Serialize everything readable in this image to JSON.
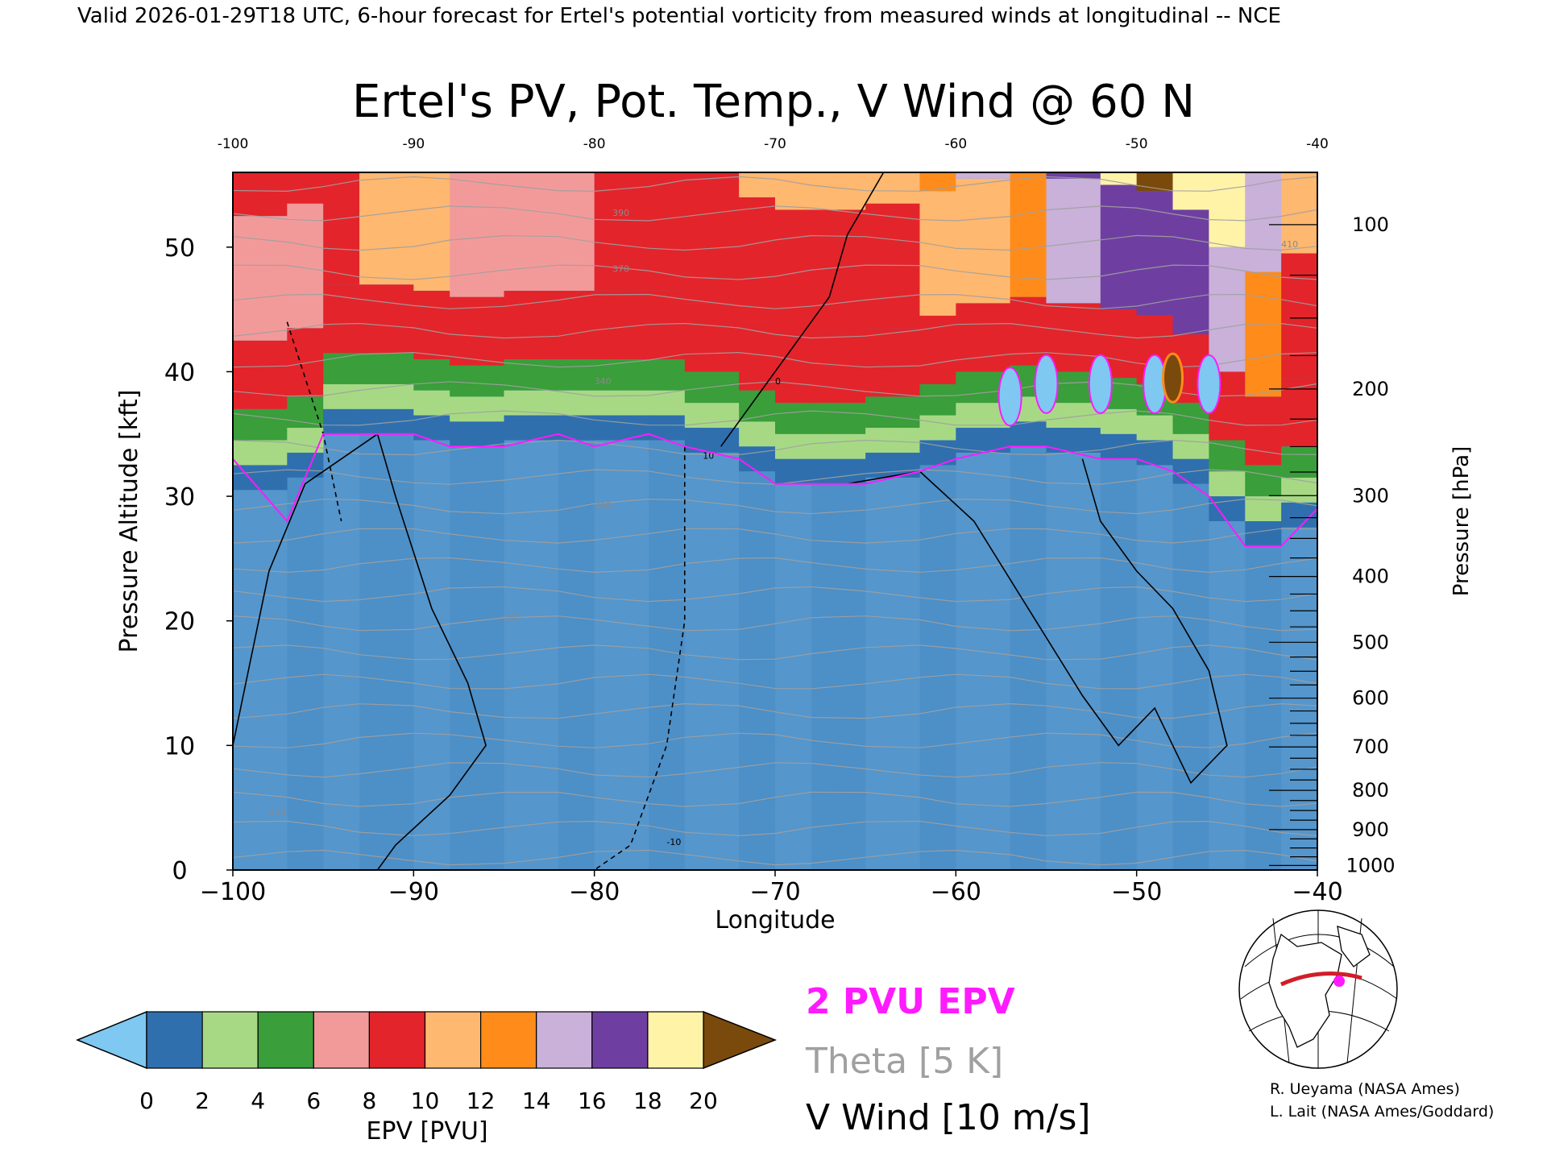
{
  "header": {
    "caption": "Valid 2026-01-29T18 UTC, 6-hour forecast for Ertel's potential vorticity from measured winds at longitudinal -- NCE"
  },
  "chart_data": {
    "type": "heatmap",
    "title": "Ertel's PV, Pot. Temp., V Wind @ 60 N",
    "xlabel": "Longitude",
    "ylabel_left": "Pressure Altitude [kft]",
    "ylabel_right": "Pressure [hPa]",
    "xlim": [
      -100,
      -40
    ],
    "ylim": [
      0,
      56
    ],
    "x_ticks": [
      -100,
      -90,
      -80,
      -70,
      -60,
      -50,
      -40
    ],
    "x_tick_labels": [
      "−100",
      "−90",
      "−80",
      "−70",
      "−60",
      "−50",
      "−40"
    ],
    "top_x_tick_labels": [
      "-100",
      "-90",
      "-80",
      "-70",
      "-60",
      "-50",
      "-40"
    ],
    "y_ticks": [
      0,
      10,
      20,
      30,
      40,
      50
    ],
    "y_tick_labels": [
      "0",
      "10",
      "20",
      "30",
      "40",
      "50"
    ],
    "pressure_ticks": [
      {
        "hpa": 1000,
        "label": "1000"
      },
      {
        "hpa": 900,
        "label": "900"
      },
      {
        "hpa": 800,
        "label": "800"
      },
      {
        "hpa": 700,
        "label": "700"
      },
      {
        "hpa": 600,
        "label": "600"
      },
      {
        "hpa": 500,
        "label": "500"
      },
      {
        "hpa": 400,
        "label": "400"
      },
      {
        "hpa": 300,
        "label": "300"
      },
      {
        "hpa": 200,
        "label": "200"
      },
      {
        "hpa": 100,
        "label": "100"
      }
    ],
    "epv_field": {
      "x": [
        -100,
        -97,
        -95,
        -93,
        -90,
        -88,
        -85,
        -82,
        -80,
        -77,
        -75,
        -72,
        -70,
        -68,
        -65,
        -62,
        -60,
        -57,
        -55,
        -52,
        -50,
        -48,
        -46,
        -44,
        -42,
        -40
      ],
      "tropopause_kft": [
        33,
        28,
        35,
        35,
        35,
        34,
        34,
        35,
        34,
        35,
        34,
        33,
        31,
        31,
        31,
        32,
        33,
        34,
        34,
        33,
        33,
        32,
        30,
        26,
        26,
        29
      ],
      "upper_epv_pvu": [
        9,
        8,
        10,
        12,
        15,
        9,
        9,
        9,
        9,
        10,
        9,
        10,
        10,
        11,
        11,
        12,
        14,
        14,
        16,
        18,
        20,
        20,
        19,
        18,
        12,
        10
      ]
    },
    "theta_levels_k": [
      270,
      290,
      300,
      340,
      370,
      390,
      410
    ],
    "wind_contour_labels": [
      "0",
      "10",
      "-10"
    ],
    "epv_contour_pvu": 2,
    "colorbar": {
      "label": "EPV [PVU]",
      "tick_labels": [
        "0",
        "2",
        "4",
        "6",
        "8",
        "10",
        "12",
        "14",
        "16",
        "18",
        "20"
      ],
      "colors": [
        "#2f6fae",
        "#a7d985",
        "#3a9e3a",
        "#f29a9a",
        "#e3242b",
        "#ffb870",
        "#ff8c1a",
        "#c9b1d9",
        "#6e3fa0",
        "#fff3a8"
      ],
      "under_color": "#7ec8f2",
      "over_color": "#7a4a0c"
    },
    "legend": {
      "pvu_line": "2 PVU EPV",
      "theta_line": "Theta [5 K]",
      "wind_line": "V Wind [10 m/s]",
      "pvu_color": "#ff1aff",
      "theta_color": "#a0a0a0",
      "wind_color": "#000000"
    }
  },
  "credits": {
    "line1": "R. Ueyama (NASA Ames)",
    "line2": "L. Lait (NASA Ames/Goddard)"
  }
}
